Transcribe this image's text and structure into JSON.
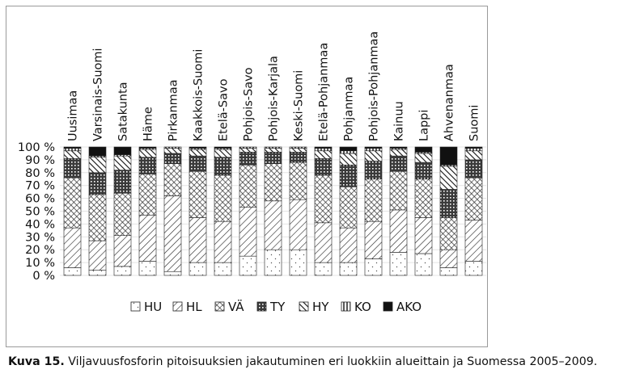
{
  "chart_data": {
    "type": "bar",
    "stacked": true,
    "percent": true,
    "categories": [
      "Uusimaa",
      "Varsinais-Suomi",
      "Satakunta",
      "Häme",
      "Pirkanmaa",
      "Kaakkois-Suomi",
      "Etelä-Savo",
      "Pohjois-Savo",
      "Pohjois-Karjala",
      "Keski-Suomi",
      "Etelä-Pohjanmaa",
      "Pohjanmaa",
      "Pohjois-Pohjanmaa",
      "Kainuu",
      "Lappi",
      "Ahvenanmaa",
      "Suomi"
    ],
    "series": [
      {
        "name": "HU",
        "values": [
          6,
          4,
          7,
          11,
          3,
          10,
          10,
          15,
          20,
          20,
          10,
          10,
          13,
          18,
          17,
          6,
          11
        ]
      },
      {
        "name": "HL",
        "values": [
          31,
          23,
          24,
          36,
          59,
          35,
          32,
          38,
          38,
          39,
          31,
          27,
          29,
          33,
          28,
          14,
          32
        ]
      },
      {
        "name": "VÄ",
        "values": [
          39,
          36,
          33,
          32,
          25,
          36,
          36,
          33,
          29,
          29,
          37,
          32,
          33,
          30,
          30,
          25,
          33
        ]
      },
      {
        "name": "TY",
        "values": [
          15,
          17,
          18,
          13,
          8,
          12,
          14,
          10,
          9,
          8,
          13,
          17,
          14,
          12,
          13,
          22,
          14
        ]
      },
      {
        "name": "HY",
        "values": [
          6,
          12,
          11,
          6,
          4,
          5,
          6,
          3,
          3,
          3,
          6,
          9,
          8,
          5,
          7,
          18,
          7
        ]
      },
      {
        "name": "KO",
        "values": [
          2,
          1,
          1,
          1,
          1,
          1,
          1,
          1,
          1,
          1,
          2,
          2,
          2,
          1,
          1,
          1,
          2
        ]
      },
      {
        "name": "AKO",
        "values": [
          1,
          7,
          6,
          1,
          0,
          1,
          1,
          0,
          0,
          0,
          1,
          3,
          1,
          1,
          4,
          14,
          1
        ]
      }
    ],
    "yticks": [
      "0 %",
      "10 %",
      "20 %",
      "30 %",
      "40 %",
      "50 %",
      "60 %",
      "70 %",
      "80 %",
      "90 %",
      "100 %"
    ],
    "ylim": [
      0,
      100
    ],
    "legend_position": "bottom"
  },
  "caption": {
    "label": "Kuva 15.",
    "text": "Viljavuusfosforin pitoisuuksien jakautuminen eri luokkiin alueittain ja Suomessa 2005–2009."
  }
}
